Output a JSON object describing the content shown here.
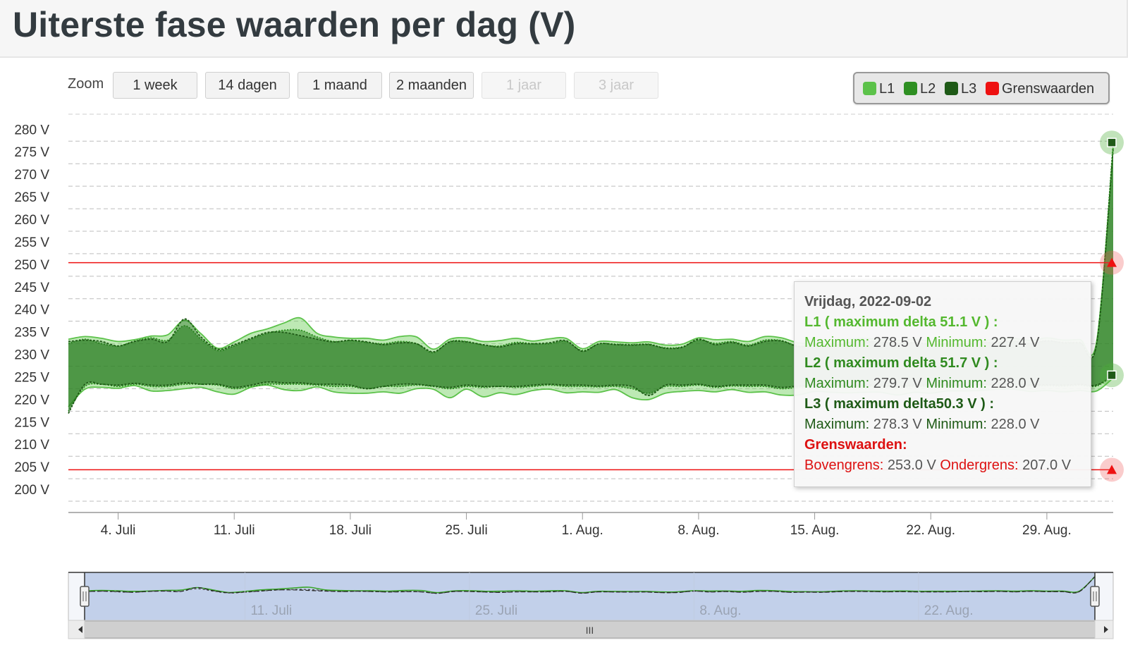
{
  "page": {
    "title": "Uiterste fase waarden per dag (V)"
  },
  "zoom": {
    "label": "Zoom",
    "buttons": [
      {
        "label": "1 week",
        "enabled": true
      },
      {
        "label": "14 dagen",
        "enabled": true
      },
      {
        "label": "1 maand",
        "enabled": true
      },
      {
        "label": "2 maanden",
        "enabled": true
      },
      {
        "label": "1 jaar",
        "enabled": false
      },
      {
        "label": "3 jaar",
        "enabled": false
      }
    ]
  },
  "legend": {
    "items": [
      {
        "name": "L1",
        "color": "#5cc24a"
      },
      {
        "name": "L2",
        "color": "#2e8f22"
      },
      {
        "name": "L3",
        "color": "#1f5a17"
      },
      {
        "name": "Grenswaarden",
        "color": "#ee1111"
      }
    ]
  },
  "tooltip": {
    "date": "Vrijdag, 2022-09-02",
    "l1_header": "L1 ( maximum delta 51.1 V ) :",
    "l1_max_label": "Maximum:",
    "l1_max_value": "278.5 V",
    "l1_min_label": "Minimum:",
    "l1_min_value": "227.4 V",
    "l2_header": "L2 ( maximum delta 51.7 V ) :",
    "l2_max_label": "Maximum:",
    "l2_max_value": "279.7 V",
    "l2_min_label": "Minimum:",
    "l2_min_value": "228.0 V",
    "l3_header": "L3 ( maximum delta50.3 V ) :",
    "l3_max_label": "Maximum:",
    "l3_max_value": "278.3 V",
    "l3_min_label": "Minimum:",
    "l3_min_value": "228.0 V",
    "grens_header": "Grenswaarden:",
    "upper_label": "Bovengrens:",
    "upper_value": "253.0 V",
    "lower_label": "Ondergrens:",
    "lower_value": "207.0 V",
    "colors": {
      "l1": "#54b82f",
      "l2": "#2f8a1f",
      "l3": "#1e5a16",
      "grens": "#dd1111"
    }
  },
  "navigator": {
    "labels": [
      "11. Juli",
      "25. Juli",
      "8. Aug.",
      "22. Aug."
    ],
    "scroll_grip": "III"
  },
  "chart_data": {
    "type": "area",
    "title": "Uiterste fase waarden per dag (V)",
    "y_unit": "V",
    "ylim": [
      200,
      280
    ],
    "yticks": [
      200,
      205,
      210,
      215,
      220,
      225,
      230,
      235,
      240,
      245,
      250,
      255,
      260,
      265,
      270,
      275,
      280
    ],
    "x_tick_labels": [
      "4. Juli",
      "11. Juli",
      "18. Juli",
      "25. Juli",
      "1. Aug.",
      "8. Aug.",
      "15. Aug.",
      "22. Aug.",
      "29. Aug."
    ],
    "x_tick_dates": [
      "2022-07-04",
      "2022-07-11",
      "2022-07-18",
      "2022-07-25",
      "2022-08-01",
      "2022-08-08",
      "2022-08-15",
      "2022-08-22",
      "2022-08-29"
    ],
    "x": [
      "2022-07-01",
      "2022-07-02",
      "2022-07-03",
      "2022-07-04",
      "2022-07-05",
      "2022-07-06",
      "2022-07-07",
      "2022-07-08",
      "2022-07-09",
      "2022-07-10",
      "2022-07-11",
      "2022-07-12",
      "2022-07-13",
      "2022-07-14",
      "2022-07-15",
      "2022-07-16",
      "2022-07-17",
      "2022-07-18",
      "2022-07-19",
      "2022-07-20",
      "2022-07-21",
      "2022-07-22",
      "2022-07-23",
      "2022-07-24",
      "2022-07-25",
      "2022-07-26",
      "2022-07-27",
      "2022-07-28",
      "2022-07-29",
      "2022-07-30",
      "2022-07-31",
      "2022-08-01",
      "2022-08-02",
      "2022-08-03",
      "2022-08-04",
      "2022-08-05",
      "2022-08-06",
      "2022-08-07",
      "2022-08-08",
      "2022-08-09",
      "2022-08-10",
      "2022-08-11",
      "2022-08-12",
      "2022-08-13",
      "2022-08-14",
      "2022-08-15",
      "2022-08-16",
      "2022-08-17",
      "2022-08-18",
      "2022-08-19",
      "2022-08-20",
      "2022-08-21",
      "2022-08-22",
      "2022-08-23",
      "2022-08-24",
      "2022-08-25",
      "2022-08-26",
      "2022-08-27",
      "2022-08-28",
      "2022-08-29",
      "2022-08-30",
      "2022-08-31",
      "2022-09-01",
      "2022-09-02"
    ],
    "series": [
      {
        "name": "L1",
        "color": "#5cc24a",
        "max": [
          236.0,
          236.6,
          236.2,
          235.5,
          235.9,
          236.7,
          237.0,
          240.2,
          237.2,
          234.0,
          235.4,
          237.3,
          238.3,
          239.6,
          240.7,
          237.3,
          236.5,
          236.2,
          236.2,
          235.8,
          236.6,
          236.5,
          233.8,
          236.0,
          236.3,
          235.5,
          235.7,
          236.2,
          235.6,
          236.1,
          236.2,
          233.9,
          235.5,
          235.4,
          235.2,
          235.4,
          234.7,
          234.9,
          236.3,
          235.9,
          236.0,
          235.5,
          236.6,
          236.3,
          235.2,
          235.1,
          235.0,
          235.9,
          236.2,
          235.9,
          235.7,
          236.0,
          235.6,
          235.6,
          235.6,
          235.6,
          236.0,
          236.2,
          235.7,
          236.3,
          235.8,
          235.9,
          235.5,
          278.5
        ],
        "min": [
          221.0,
          224.9,
          225.3,
          225.1,
          225.7,
          224.5,
          224.6,
          225.0,
          225.3,
          224.3,
          223.8,
          225.3,
          225.8,
          224.8,
          224.6,
          225.4,
          224.3,
          224.0,
          224.0,
          224.3,
          224.0,
          225.0,
          224.9,
          223.0,
          224.9,
          223.2,
          224.1,
          223.7,
          224.6,
          224.9,
          224.1,
          224.3,
          224.2,
          224.8,
          223.0,
          222.6,
          224.0,
          224.4,
          224.6,
          224.3,
          224.8,
          224.2,
          224.3,
          223.6,
          223.6,
          224.4,
          224.2,
          224.1,
          224.2,
          224.2,
          223.6,
          224.2,
          224.0,
          224.5,
          224.5,
          224.6,
          224.9,
          224.9,
          224.4,
          224.6,
          224.3,
          224.6,
          224.5,
          227.4
        ]
      },
      {
        "name": "L2",
        "color": "#2e8f22",
        "max": [
          235.0,
          236.0,
          235.0,
          234.5,
          235.6,
          236.3,
          235.8,
          239.0,
          236.0,
          233.5,
          234.5,
          236.0,
          237.3,
          238.0,
          238.0,
          236.5,
          235.5,
          235.7,
          235.3,
          235.0,
          235.5,
          235.0,
          233.0,
          235.5,
          235.5,
          234.7,
          234.5,
          235.3,
          235.0,
          235.0,
          235.5,
          233.5,
          235.0,
          234.9,
          234.8,
          234.9,
          234.1,
          234.3,
          235.8,
          235.1,
          235.5,
          234.7,
          235.8,
          235.7,
          234.5,
          234.8,
          234.6,
          235.3,
          235.6,
          235.4,
          235.0,
          235.3,
          235.0,
          235.1,
          235.0,
          235.3,
          235.3,
          235.6,
          235.1,
          235.7,
          235.3,
          235.3,
          235.0,
          279.7
        ],
        "min": [
          220.0,
          225.5,
          226.0,
          225.5,
          226.0,
          225.5,
          225.5,
          226.0,
          226.0,
          225.8,
          225.0,
          225.5,
          226.0,
          226.0,
          226.0,
          225.8,
          225.5,
          225.5,
          225.0,
          225.5,
          225.5,
          225.8,
          225.5,
          225.0,
          225.5,
          225.3,
          225.5,
          225.3,
          225.5,
          225.8,
          225.5,
          225.5,
          225.4,
          225.5,
          225.0,
          224.0,
          225.5,
          225.5,
          225.8,
          225.3,
          225.6,
          225.5,
          225.5,
          225.0,
          225.3,
          225.5,
          225.5,
          225.4,
          225.5,
          225.5,
          225.3,
          225.5,
          225.5,
          225.6,
          225.5,
          225.8,
          225.7,
          225.8,
          225.6,
          225.7,
          225.6,
          225.8,
          225.6,
          228.0
        ]
      },
      {
        "name": "L3",
        "color": "#1f5a17",
        "max": [
          235.5,
          235.8,
          235.5,
          234.5,
          235.5,
          236.0,
          235.5,
          240.5,
          236.5,
          233.8,
          234.8,
          236.2,
          237.5,
          237.5,
          236.8,
          236.0,
          235.4,
          235.8,
          235.4,
          234.8,
          235.2,
          235.0,
          233.2,
          235.4,
          235.4,
          234.8,
          234.3,
          235.0,
          235.0,
          235.2,
          235.7,
          233.3,
          235.0,
          234.8,
          234.7,
          234.8,
          234.0,
          234.2,
          236.0,
          234.8,
          235.3,
          234.5,
          235.5,
          235.6,
          234.4,
          234.6,
          234.4,
          235.2,
          235.5,
          235.3,
          235.1,
          235.2,
          234.9,
          235.0,
          235.0,
          235.3,
          235.2,
          235.5,
          235.0,
          235.6,
          235.2,
          235.2,
          235.0,
          278.3
        ],
        "min": [
          219.5,
          226.0,
          226.0,
          225.8,
          226.2,
          225.8,
          225.8,
          226.3,
          226.0,
          226.0,
          225.3,
          225.8,
          226.5,
          226.3,
          226.3,
          226.0,
          226.0,
          225.8,
          225.0,
          225.5,
          226.0,
          226.0,
          225.6,
          225.3,
          225.8,
          225.5,
          225.5,
          225.5,
          225.8,
          226.0,
          225.8,
          225.8,
          225.6,
          225.8,
          225.5,
          223.5,
          225.8,
          225.8,
          226.0,
          225.5,
          225.8,
          225.8,
          225.8,
          225.3,
          225.6,
          225.8,
          225.8,
          225.6,
          225.8,
          225.8,
          225.6,
          225.8,
          225.8,
          225.8,
          225.8,
          226.0,
          225.9,
          226.0,
          225.8,
          225.9,
          225.8,
          226.0,
          225.8,
          228.0
        ]
      }
    ],
    "thresholds": [
      {
        "name": "Bovengrens",
        "value": 253.0,
        "color": "#ee1111"
      },
      {
        "name": "Ondergrens",
        "value": 207.0,
        "color": "#ee1111"
      }
    ],
    "grid": true,
    "legend_position": "top-right"
  }
}
